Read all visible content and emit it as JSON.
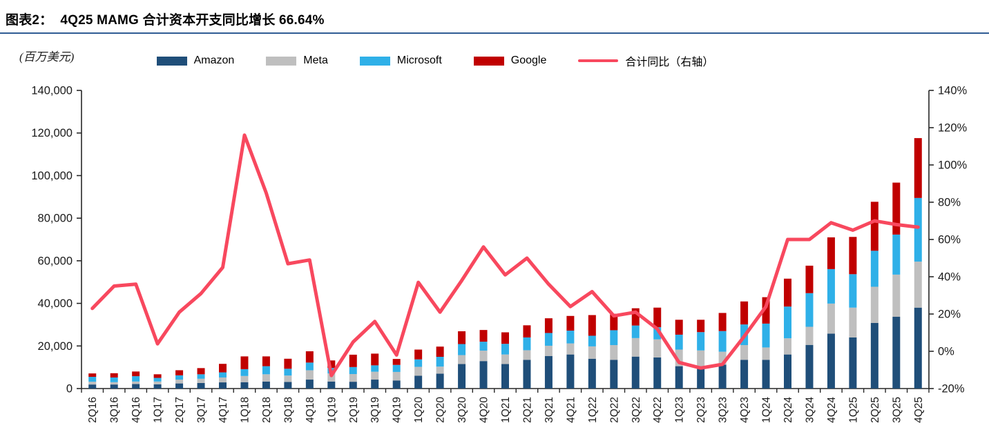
{
  "header": {
    "title": "图表2：  4Q25 MAMG 合计资本开支同比增长 66.64%"
  },
  "unit_label": "(百万美元)",
  "legend": [
    {
      "name": "amazon",
      "label": "Amazon",
      "color": "#1F4E79",
      "type": "box"
    },
    {
      "name": "meta",
      "label": "Meta",
      "color": "#BFBFBF",
      "type": "box"
    },
    {
      "name": "microsoft",
      "label": "Microsoft",
      "color": "#2FB0E8",
      "type": "box"
    },
    {
      "name": "google",
      "label": "Google",
      "color": "#C00000",
      "type": "box"
    },
    {
      "name": "yoy-line",
      "label": "合计同比（右轴）",
      "color": "#F8485E",
      "type": "line"
    }
  ],
  "chart_data": {
    "type": "combo",
    "bar_type": "stacked",
    "title": "4Q25 MAMG 合计资本开支同比增长 66.64%",
    "unit": "百万美元",
    "legend_position": "top",
    "grid": false,
    "categories": [
      "2Q16",
      "3Q16",
      "4Q16",
      "1Q17",
      "2Q17",
      "3Q17",
      "4Q17",
      "1Q18",
      "2Q18",
      "3Q18",
      "4Q18",
      "1Q19",
      "2Q19",
      "3Q19",
      "4Q19",
      "1Q20",
      "2Q20",
      "3Q20",
      "4Q20",
      "1Q21",
      "2Q21",
      "3Q21",
      "4Q21",
      "1Q22",
      "2Q22",
      "3Q22",
      "4Q22",
      "1Q23",
      "2Q23",
      "3Q23",
      "4Q23",
      "1Q24",
      "2Q24",
      "3Q24",
      "4Q24",
      "1Q25",
      "2Q25",
      "3Q25",
      "4Q25"
    ],
    "series": [
      {
        "name": "Amazon",
        "color": "#1F4E79",
        "values": [
          1900,
          1900,
          2100,
          2000,
          2400,
          2600,
          2900,
          3000,
          3300,
          3100,
          4200,
          3300,
          3200,
          4200,
          3800,
          6000,
          7000,
          11500,
          12900,
          11500,
          13500,
          15300,
          16000,
          14000,
          13500,
          15000,
          14600,
          10500,
          10500,
          11200,
          13500,
          13500,
          16000,
          20500,
          25800,
          24000,
          30800,
          33700,
          38000
        ]
      },
      {
        "name": "Meta",
        "color": "#BFBFBF",
        "values": [
          1300,
          1100,
          1200,
          1300,
          1800,
          2000,
          2300,
          2900,
          3400,
          3000,
          4400,
          3800,
          3600,
          3700,
          4000,
          4200,
          3300,
          4200,
          4900,
          4500,
          4500,
          4800,
          5200,
          5800,
          6900,
          8700,
          8500,
          7800,
          7400,
          6100,
          6900,
          5800,
          7600,
          8500,
          14100,
          14000,
          17000,
          19800,
          21600
        ]
      },
      {
        "name": "Microsoft",
        "color": "#2FB0E8",
        "values": [
          2300,
          2200,
          2500,
          1700,
          2000,
          2100,
          2400,
          3200,
          3800,
          3200,
          3600,
          2600,
          3300,
          3000,
          3300,
          3500,
          4600,
          5200,
          4200,
          5000,
          6000,
          6000,
          6000,
          5000,
          7000,
          5900,
          5700,
          7000,
          8600,
          9700,
          9700,
          11200,
          14900,
          15800,
          16200,
          15700,
          16900,
          18800,
          29900
        ]
      },
      {
        "name": "Google",
        "color": "#C00000",
        "values": [
          1600,
          2000,
          2200,
          1700,
          2400,
          2900,
          4000,
          6000,
          4600,
          4700,
          5300,
          3500,
          5800,
          5500,
          2800,
          4600,
          4800,
          6000,
          5500,
          5400,
          5700,
          6900,
          6900,
          9700,
          7700,
          8100,
          9200,
          7000,
          5800,
          8500,
          10800,
          12400,
          13100,
          12900,
          14900,
          17500,
          23000,
          24400,
          28100
        ]
      }
    ],
    "line": {
      "name": "合计同比（右轴）",
      "color": "#F8485E",
      "axis": "right",
      "values": [
        23,
        35,
        36,
        4,
        21,
        31,
        45,
        116,
        85,
        47,
        49,
        -13,
        5,
        16,
        -2,
        37,
        21,
        38,
        56,
        41,
        50,
        36,
        24,
        32,
        19,
        21,
        12,
        -6,
        -9,
        -7,
        8,
        24,
        60,
        60,
        69,
        65,
        70,
        68,
        66.64
      ]
    },
    "left_axis": {
      "min": 0,
      "max": 140000,
      "tick_interval": 20000,
      "tick_labels": [
        "140,000",
        "120,000",
        "100,000",
        "80,000",
        "60,000",
        "40,000",
        "20,000",
        "0"
      ]
    },
    "right_axis": {
      "min": -20,
      "max": 140,
      "tick_interval": 20,
      "tick_labels": [
        "140%",
        "120%",
        "100%",
        "80%",
        "60%",
        "40%",
        "20%",
        "0%",
        "-20%"
      ]
    }
  }
}
